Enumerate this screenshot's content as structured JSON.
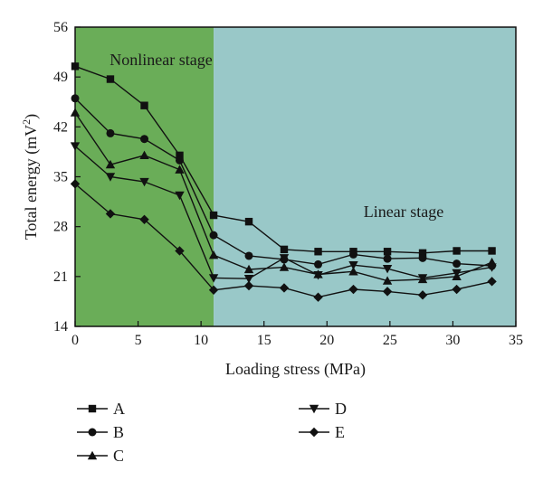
{
  "chart_data": {
    "type": "line",
    "xlabel": "Loading stress (MPa)",
    "ylabel_main": "Total energy (mV",
    "ylabel_sup": "2",
    "ylabel_close": ")",
    "xlim": [
      0,
      35
    ],
    "ylim": [
      14,
      56
    ],
    "xticks": [
      0,
      5,
      10,
      15,
      20,
      25,
      30,
      35
    ],
    "yticks": [
      14,
      21,
      28,
      35,
      42,
      49,
      56
    ],
    "regions": [
      {
        "label": "Nonlinear stage",
        "x_start": 0,
        "x_end": 11,
        "color": "#6aad58"
      },
      {
        "label": "Linear stage",
        "x_start": 11,
        "x_end": 35,
        "color": "#99c8c8"
      }
    ],
    "series": [
      {
        "name": "A",
        "marker": "square",
        "x": [
          0,
          2.8,
          5.5,
          8.3,
          11,
          13.8,
          16.6,
          19.3,
          22.1,
          24.8,
          27.6,
          30.3,
          33.1
        ],
        "y": [
          50.5,
          48.7,
          45,
          38,
          29.6,
          28.7,
          24.8,
          24.5,
          24.5,
          24.5,
          24.3,
          24.6,
          24.6
        ]
      },
      {
        "name": "B",
        "marker": "circle",
        "x": [
          0,
          2.8,
          5.5,
          8.3,
          11,
          13.8,
          16.6,
          19.3,
          22.1,
          24.8,
          27.6,
          30.3,
          33.1
        ],
        "y": [
          46,
          41.1,
          40.3,
          37.3,
          26.8,
          23.9,
          23.4,
          22.7,
          24.1,
          23.5,
          23.6,
          22.8,
          22.5
        ]
      },
      {
        "name": "C",
        "marker": "triangle-up",
        "x": [
          0,
          2.8,
          5.5,
          8.3,
          11,
          13.8,
          16.6,
          19.3,
          22.1,
          24.8,
          27.6,
          30.3,
          33.1
        ],
        "y": [
          44,
          36.7,
          38,
          36,
          24,
          22,
          22.3,
          21.3,
          21.7,
          20.4,
          20.6,
          21,
          23
        ]
      },
      {
        "name": "D",
        "marker": "triangle-down",
        "x": [
          0,
          2.8,
          5.5,
          8.3,
          11,
          13.8,
          16.6,
          19.3,
          22.1,
          24.8,
          27.6,
          30.3,
          33.1
        ],
        "y": [
          39.3,
          35,
          34.3,
          32.4,
          20.8,
          20.7,
          23.6,
          21.2,
          22.6,
          22.1,
          20.8,
          21.5,
          22.3
        ]
      },
      {
        "name": "E",
        "marker": "diamond",
        "x": [
          0,
          2.8,
          5.5,
          8.3,
          11,
          13.8,
          16.6,
          19.3,
          22.1,
          24.8,
          27.6,
          30.3,
          33.1
        ],
        "y": [
          34,
          29.8,
          29,
          24.6,
          19.1,
          19.7,
          19.4,
          18.1,
          19.2,
          18.9,
          18.4,
          19.2,
          20.3
        ]
      }
    ],
    "legend_placement": "bottom"
  }
}
